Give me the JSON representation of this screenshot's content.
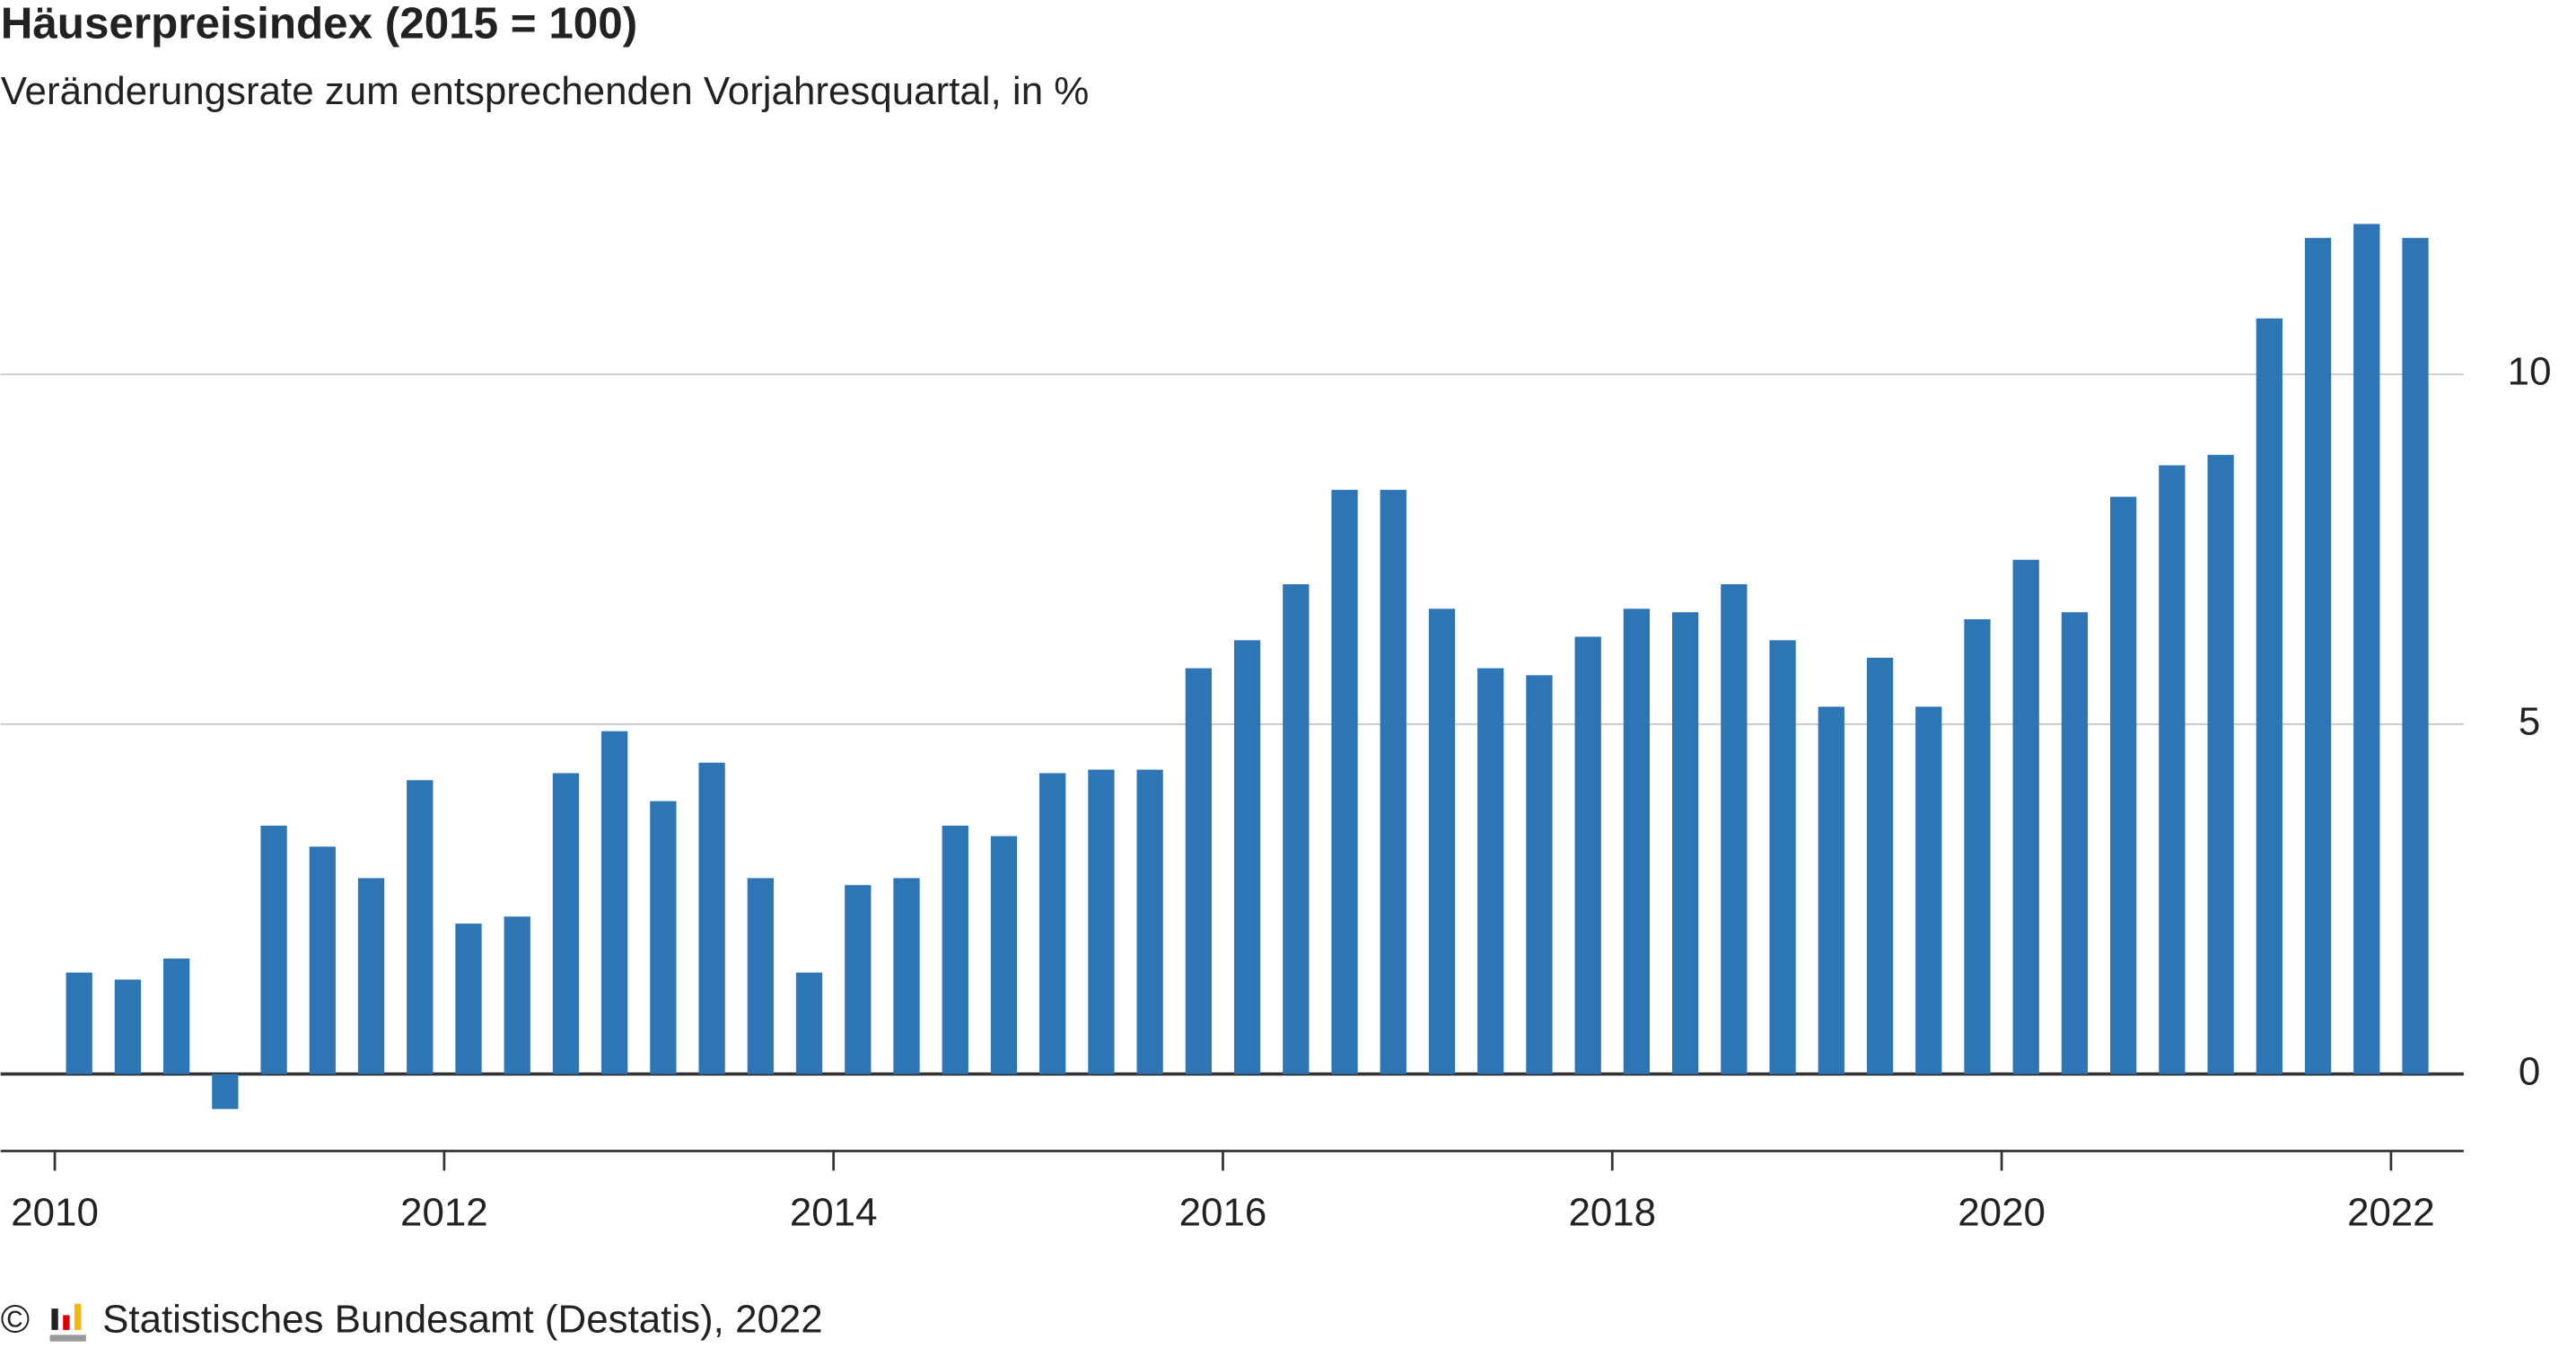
{
  "chart_data": {
    "type": "bar",
    "title": "Häuserpreisindex (2015 = 100)",
    "subtitle": "Veränderungsrate zum entsprechenden Vorjahresquartal, in %",
    "copyright": "©",
    "source": "Statistisches Bundesamt (Destatis), 2022",
    "color": "#2e75b6",
    "categories": [
      null,
      null,
      null,
      null,
      null,
      null,
      null,
      null,
      null,
      null,
      null,
      null,
      null,
      null,
      null,
      null,
      null,
      null,
      null,
      null,
      null,
      null,
      null,
      null,
      null,
      null,
      null,
      null,
      null,
      null,
      null,
      null,
      null,
      null,
      null,
      null,
      null,
      null,
      null,
      null,
      null,
      null,
      null,
      null,
      null,
      null,
      null,
      null,
      null
    ],
    "values": [
      1.45,
      1.35,
      1.65,
      -0.5,
      3.55,
      3.25,
      2.8,
      4.2,
      2.15,
      2.25,
      4.3,
      4.9,
      3.9,
      4.45,
      2.8,
      1.45,
      2.7,
      2.8,
      3.55,
      3.4,
      4.3,
      4.35,
      4.35,
      5.8,
      6.2,
      7.0,
      8.35,
      8.35,
      6.65,
      5.8,
      5.7,
      6.25,
      6.65,
      6.6,
      7.0,
      6.2,
      5.25,
      5.95,
      5.25,
      6.5,
      7.35,
      6.6,
      8.25,
      8.7,
      8.85,
      10.8,
      11.95,
      12.15,
      11.95
    ],
    "xticks": [
      2010,
      2012,
      2014,
      2016,
      2018,
      2020,
      2022
    ],
    "ylim": [
      -1.1,
      12.3
    ],
    "yticks": [
      0,
      5,
      10
    ],
    "grid": true
  }
}
